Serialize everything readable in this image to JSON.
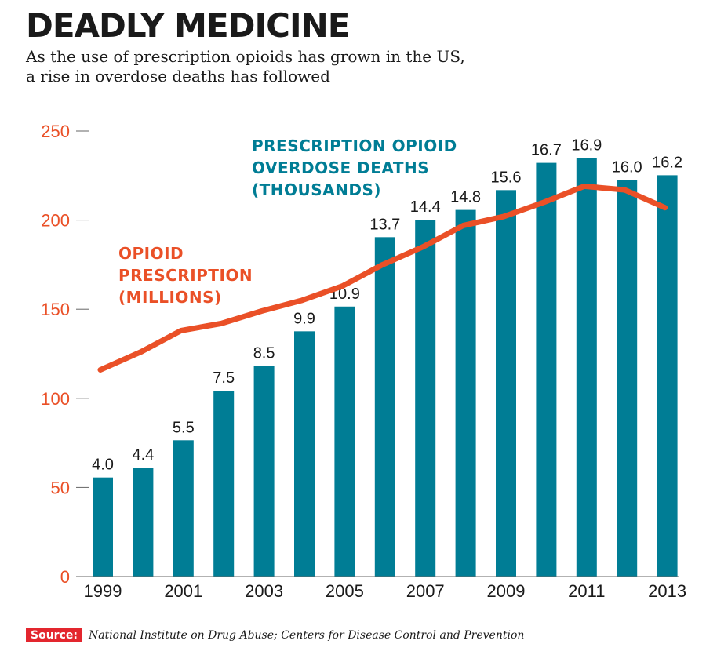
{
  "title": "DEADLY MEDICINE",
  "subtitle_line1": "As the use of prescription opioids has grown in the US,",
  "subtitle_line2": "a rise in overdose deaths has followed",
  "source_label": "Source:",
  "source_text": "National Institute on Drug Abuse; Centers for Disease Control and Prevention",
  "colors": {
    "bar": "#007d95",
    "line": "#ea5027",
    "axis_label": "#ea5027",
    "text": "#1a1a1a"
  },
  "chart_data": {
    "type": "bar+line",
    "categories": [
      "1999",
      "2000",
      "2001",
      "2002",
      "2003",
      "2004",
      "2005",
      "2006",
      "2007",
      "2008",
      "2009",
      "2010",
      "2011",
      "2012",
      "2013"
    ],
    "x_tick_labels": [
      "1999",
      "",
      "2001",
      "",
      "2003",
      "",
      "2005",
      "",
      "2007",
      "",
      "2009",
      "",
      "2011",
      "",
      "2013"
    ],
    "series": [
      {
        "name": "PRESCRIPTION OPIOID OVERDOSE DEATHS (THOUSANDS)",
        "label_lines": [
          "PRESCRIPTION OPIOID",
          "OVERDOSE DEATHS",
          "(THOUSANDS)"
        ],
        "type": "bar",
        "values": [
          4.0,
          4.4,
          5.5,
          7.5,
          8.5,
          9.9,
          10.9,
          13.7,
          14.4,
          14.8,
          15.6,
          16.7,
          16.9,
          16.0,
          16.2
        ],
        "value_labels": [
          "4.0",
          "4.4",
          "5.5",
          "7.5",
          "8.5",
          "9.9",
          "10.9",
          "13.7",
          "14.4",
          "14.8",
          "15.6",
          "16.7",
          "16.9",
          "16.0",
          "16.2"
        ]
      },
      {
        "name": "OPIOID PRESCRIPTION (MILLIONS)",
        "label_lines": [
          "OPIOID",
          "PRESCRIPTION",
          "(MILLIONS)"
        ],
        "type": "line",
        "values": [
          116,
          126,
          138,
          142,
          149,
          155,
          163,
          175,
          185,
          197,
          202,
          210,
          219,
          217,
          207
        ]
      }
    ],
    "y_axis": {
      "ticks": [
        0,
        50,
        100,
        150,
        200,
        250
      ],
      "tick_labels": [
        "0",
        "50",
        "100",
        "150",
        "200",
        "250"
      ],
      "ylim": [
        0,
        250
      ]
    },
    "bar_scale_note": "bars share the left axis where 1 thousand deaths = 13.9 axis units"
  }
}
